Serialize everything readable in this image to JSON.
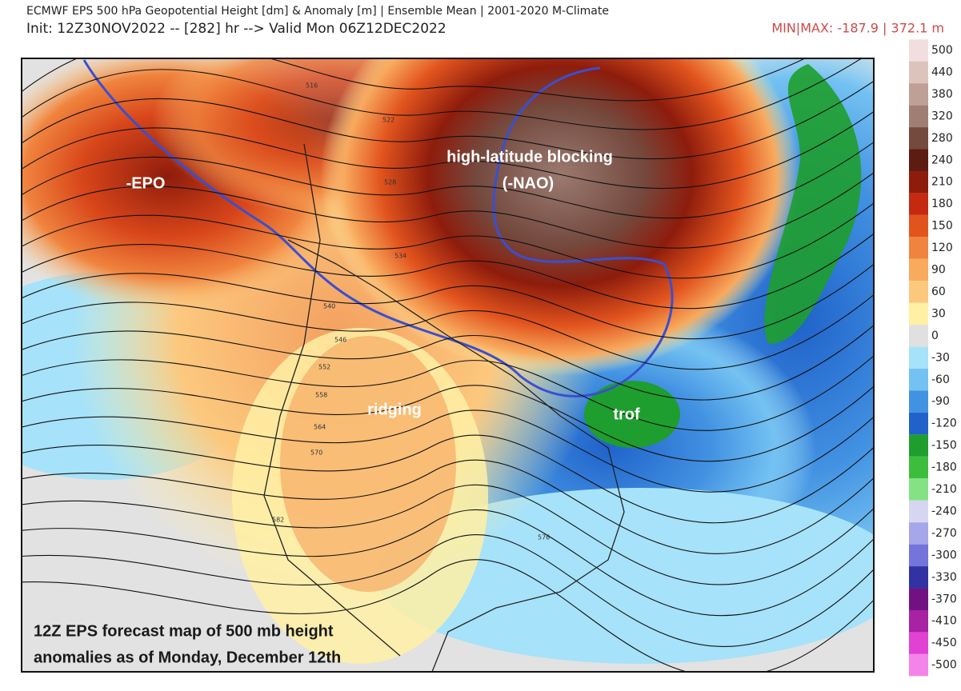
{
  "header": {
    "title": "ECMWF EPS 500 hPa Geopotential Height [dm] & Anomaly [m] | Ensemble Mean | 2001-2020 M-Climate",
    "init": "Init: 12Z30NOV2022 -- [282] hr --> Valid Mon 06Z12DEC2022",
    "minmax": "MIN|MAX: -187.9 | 372.1 m"
  },
  "annotations": [
    "-EPO",
    "high-latitude blocking",
    "(-NAO)",
    "ridging",
    "trof"
  ],
  "caption": [
    "12Z EPS forecast map of 500 mb height",
    "anomalies as of Monday, December 12th"
  ],
  "contour_labels": [
    516,
    522,
    528,
    534,
    540,
    546,
    552,
    558,
    564,
    570,
    576,
    582
  ],
  "colorbar": {
    "ticks": [
      500,
      440,
      380,
      320,
      280,
      240,
      210,
      180,
      150,
      120,
      90,
      60,
      30,
      0,
      -30,
      -60,
      -90,
      -120,
      -150,
      -180,
      -210,
      -240,
      -270,
      -300,
      -330,
      -370,
      -410,
      -450,
      -500
    ],
    "colors": [
      "#f2dede",
      "#dcc4bc",
      "#bfa096",
      "#a07e74",
      "#74493e",
      "#5c1c12",
      "#8e1c0c",
      "#c42a10",
      "#e2541e",
      "#f0843e",
      "#f8aa5e",
      "#fcc87e",
      "#fff0a4",
      "#e0e0e0",
      "#a6e2fa",
      "#74c2f2",
      "#4292e2",
      "#2062ca",
      "#1e9e2e",
      "#3cbe3c",
      "#84e284",
      "#d6d6f2",
      "#a6a6ea",
      "#7474da",
      "#3232a2",
      "#701282",
      "#a822a4",
      "#e242d2",
      "#f484ea"
    ]
  }
}
